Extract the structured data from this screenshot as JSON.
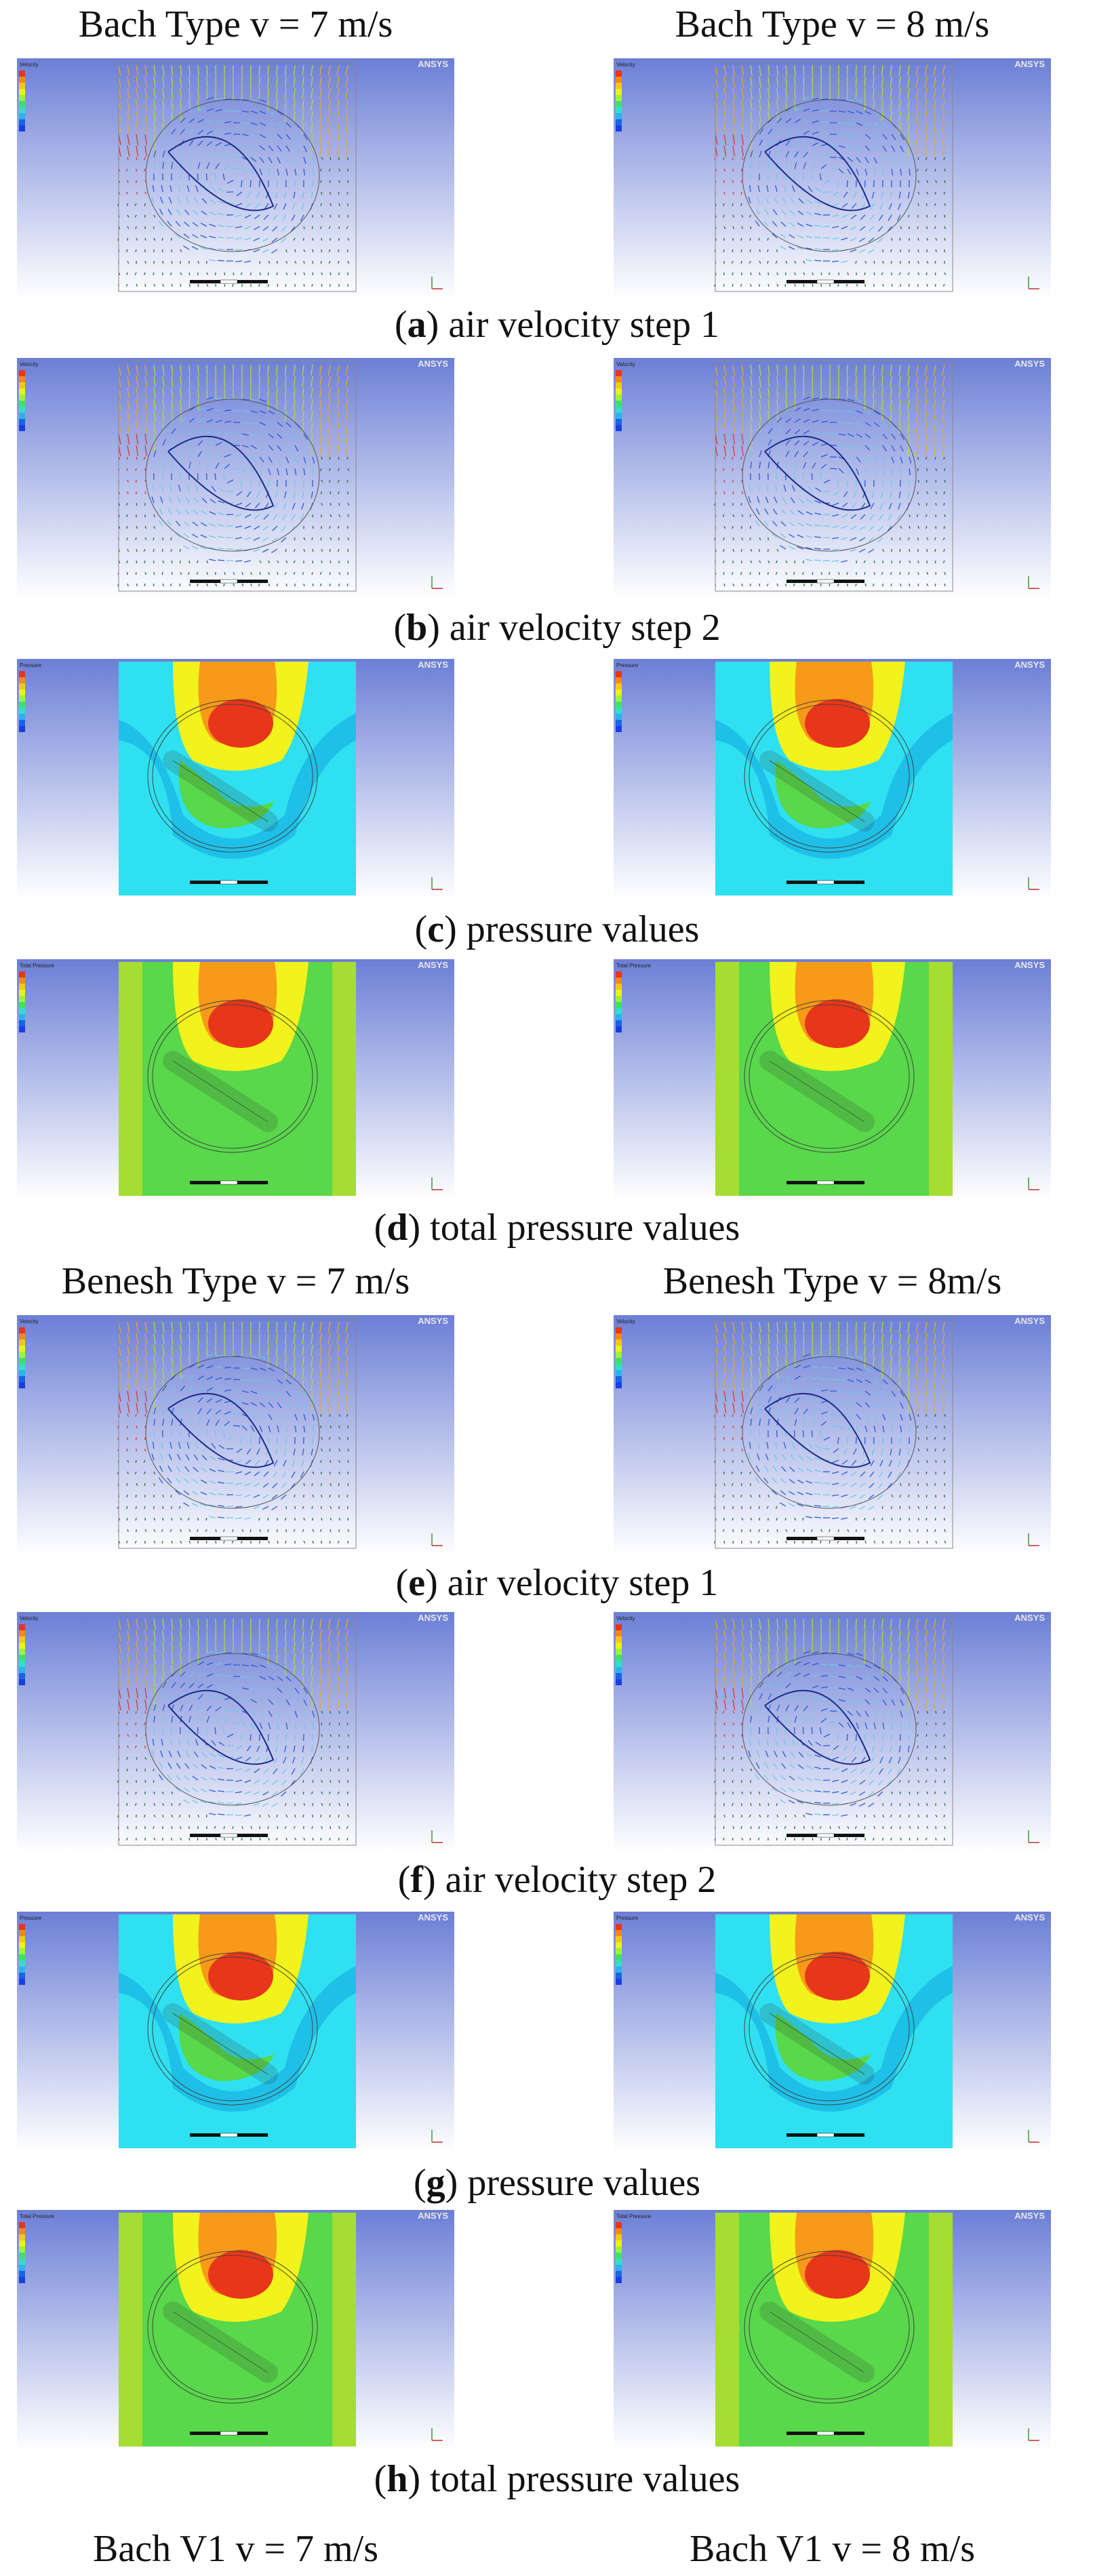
{
  "headers": {
    "bach_7": "Bach Type v = 7 m/s",
    "bach_8": "Bach Type v = 8 m/s",
    "benesh_7": "Benesh Type v = 7 m/s",
    "benesh_8": "Benesh Type v = 8m/s",
    "bachv1_7": "Bach V1 v = 7 m/s",
    "bachv1_8": "Bach V1 v = 8 m/s"
  },
  "captions": [
    {
      "letter": "a",
      "text": " air velocity step 1"
    },
    {
      "letter": "b",
      "text": " air velocity step 2"
    },
    {
      "letter": "c",
      "text": " pressure values"
    },
    {
      "letter": "d",
      "text": " total pressure values"
    },
    {
      "letter": "e",
      "text": " air velocity step 1"
    },
    {
      "letter": "f",
      "text": " air velocity step 2"
    },
    {
      "letter": "g",
      "text": " pressure values"
    },
    {
      "letter": "h",
      "text": " total pressure values"
    }
  ],
  "panel_rows": [
    {
      "kind": "velocity",
      "legend_title": "Velocity"
    },
    {
      "kind": "velocity",
      "legend_title": "Velocity"
    },
    {
      "kind": "pressure",
      "legend_title": "Pressure"
    },
    {
      "kind": "total_pressure",
      "legend_title": "Total Pressure"
    },
    {
      "kind": "velocity",
      "legend_title": "Velocity"
    },
    {
      "kind": "velocity",
      "legend_title": "Velocity"
    },
    {
      "kind": "pressure",
      "legend_title": "Pressure"
    },
    {
      "kind": "total_pressure",
      "legend_title": "Total Pressure"
    }
  ],
  "logo_text": "ANSYS",
  "colors": {
    "background_top": "#6c7fd6",
    "background_bottom": "#ffffff",
    "field_cyan": "#2fe0f0",
    "field_green": "#58d84a",
    "field_yellow": "#f2f21c",
    "field_orange": "#f79a18",
    "field_red": "#e8361a",
    "field_blue": "#1a3fe0"
  }
}
